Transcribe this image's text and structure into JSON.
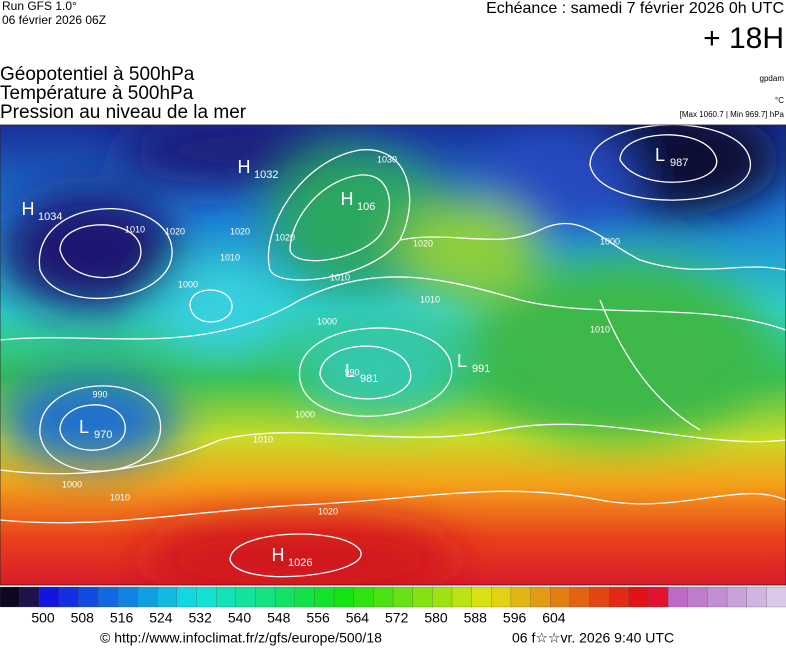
{
  "header": {
    "run": "Run GFS 1.0°",
    "date": "06 février 2026 06Z",
    "echeance": "Echéance : samedi 7 février 2026 0h UTC",
    "lead": "+ 18H",
    "titles": [
      "Géopotentiel à 500hPa",
      "Température à 500hPa",
      "Pression au niveau de la mer"
    ],
    "units": [
      "gpdam",
      "°C",
      "[Max 1060.7 | Min 969.7] hPa"
    ]
  },
  "map": {
    "centers": [
      {
        "type": "H",
        "value": "1032"
      },
      {
        "type": "H",
        "value": "1034"
      },
      {
        "type": "H",
        "value": "106"
      },
      {
        "type": "L",
        "value": "987"
      },
      {
        "type": "L",
        "value": "981"
      },
      {
        "type": "L",
        "value": "991"
      },
      {
        "type": "L",
        "value": "970"
      },
      {
        "type": "H",
        "value": "1026"
      }
    ],
    "isobar_labels": [
      "1010",
      "1020",
      "1000",
      "1010",
      "1020",
      "1030",
      "1020",
      "1010",
      "1000",
      "990",
      "1000",
      "990",
      "1010",
      "1000",
      "1010",
      "1020",
      "1010",
      "1000",
      "1010",
      "1020"
    ]
  },
  "scale": {
    "labels": [
      500,
      508,
      516,
      524,
      532,
      540,
      548,
      556,
      564,
      572,
      580,
      588,
      596,
      604
    ]
  },
  "footer": {
    "url": "© http://www.infoclimat.fr/z/gfs/europe/500/18",
    "timestamp": "06 f☆☆vr. 2026  9:40 UTC"
  }
}
